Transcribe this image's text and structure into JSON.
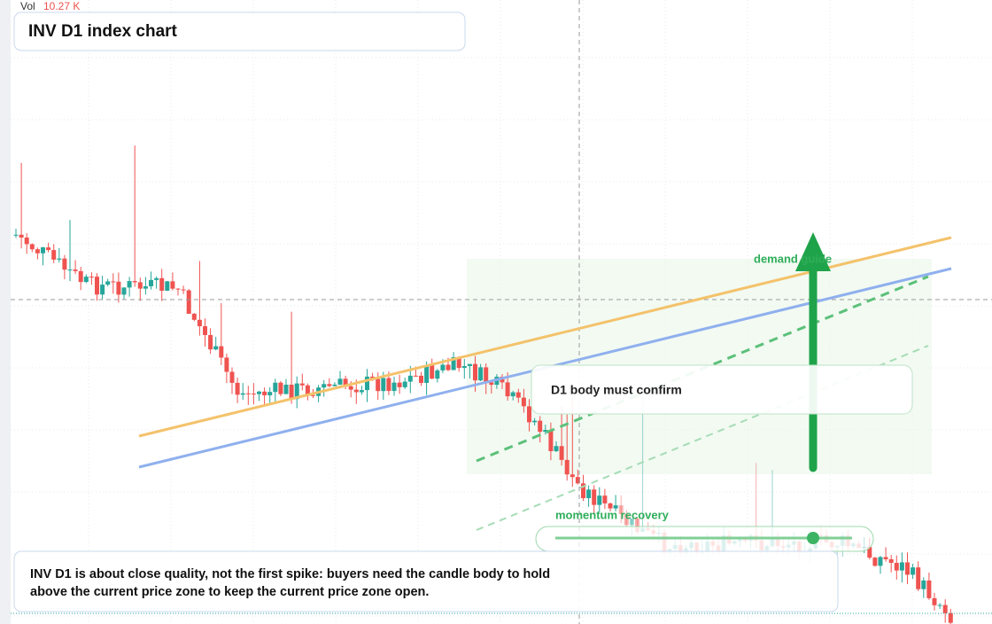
{
  "volume": {
    "label": "Vol",
    "value": "10.27 K"
  },
  "header": {
    "title": "INV D1 index chart"
  },
  "annotations": {
    "demand": "demand guide",
    "confirm": "D1 body must confirm",
    "momentum": "momentum recovery"
  },
  "caption": {
    "line1": "INV D1 is about close quality, not the first spike: buyers need the candle body to hold",
    "line2": "above the current price zone to keep the current price zone open."
  }
}
